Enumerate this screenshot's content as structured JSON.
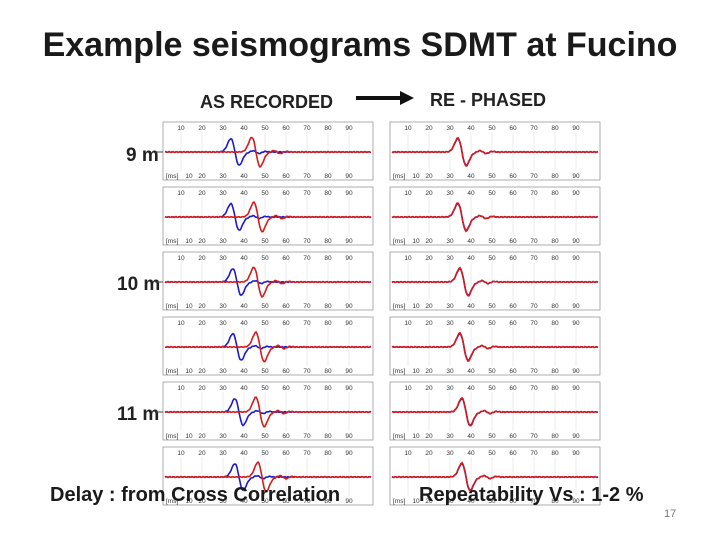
{
  "slide": {
    "title": "Example seismograms SDMT at Fucino",
    "left_label": "AS RECORDED",
    "right_label": "RE - PHASED",
    "depth_labels": [
      "9 m",
      "10 m",
      "11 m"
    ],
    "bottom_left": "Delay : from Cross Correlation",
    "bottom_right": "Repeatability Vs  : 1-2 %",
    "slide_number": "17"
  },
  "chart_data": {
    "type": "line",
    "panels": 12,
    "columns": [
      "AS RECORDED",
      "RE - PHASED"
    ],
    "tick_labels": [
      "10",
      "20",
      "30",
      "40",
      "50",
      "60",
      "70",
      "80",
      "90"
    ],
    "unit_label": "[ms]",
    "series_colors": {
      "upper_receiver": "#1c1cc8",
      "lower_receiver": "#d41c1c"
    },
    "colors": {
      "frame": "#9a9a9a",
      "tick_text": "#333333",
      "arrow": "#111111"
    }
  }
}
